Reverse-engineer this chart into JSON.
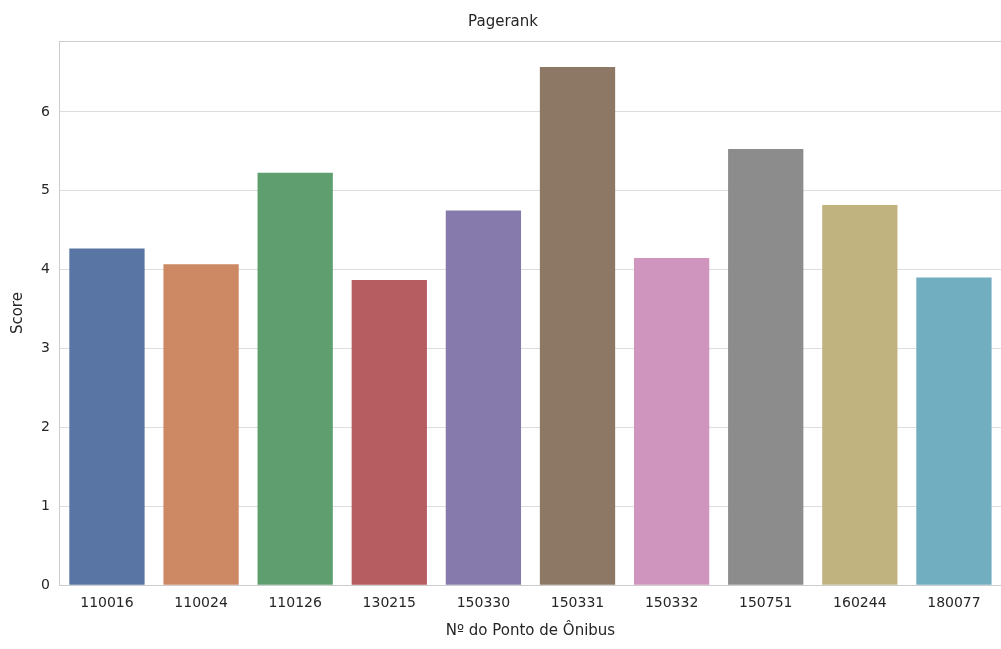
{
  "chart_data": {
    "type": "bar",
    "title": "Pagerank",
    "xlabel": "Nº do Ponto de Ônibus",
    "ylabel": "Score",
    "categories": [
      "110016",
      "110024",
      "110126",
      "130215",
      "150330",
      "150331",
      "150332",
      "150751",
      "160244",
      "180077"
    ],
    "values": [
      4.27,
      4.07,
      5.23,
      3.87,
      4.75,
      6.57,
      4.15,
      5.53,
      4.82,
      3.9
    ],
    "colors": [
      "#5975a4",
      "#cc8963",
      "#5f9e6e",
      "#b55d60",
      "#857aab",
      "#8d7866",
      "#d095bf",
      "#8c8c8c",
      "#c1b37f",
      "#71aec0"
    ],
    "ylim": [
      0,
      6.9
    ],
    "yticks": [
      0,
      1,
      2,
      3,
      4,
      5,
      6
    ],
    "grid": "y",
    "legend": false
  }
}
